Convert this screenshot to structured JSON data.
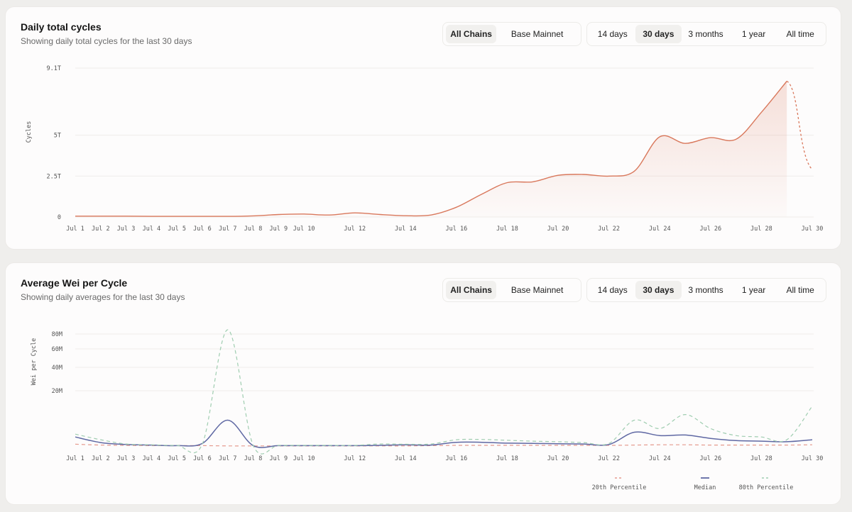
{
  "charts": [
    {
      "title": "Daily total cycles",
      "subtitle": "Showing daily total cycles for the last 30 days",
      "chain_options": [
        "All Chains",
        "Base Mainnet"
      ],
      "selected_chain": "All Chains",
      "range_options": [
        "14 days",
        "30 days",
        "3 months",
        "1 year",
        "All time"
      ],
      "selected_range": "30 days"
    },
    {
      "title": "Average Wei per Cycle",
      "subtitle": "Showing daily averages for the last 30 days",
      "chain_options": [
        "All Chains",
        "Base Mainnet"
      ],
      "selected_chain": "All Chains",
      "range_options": [
        "14 days",
        "30 days",
        "3 months",
        "1 year",
        "All time"
      ],
      "selected_range": "30 days"
    }
  ],
  "colors": {
    "cycles_line": "#d9785c",
    "percentile_20": "#e59a8e",
    "median": "#5f68a3",
    "percentile_80": "#9fcdb0"
  },
  "chart_data": [
    {
      "type": "area",
      "ylabel": "Cycles",
      "yticks": [
        0,
        2.5,
        5,
        9.1
      ],
      "ytick_labels": [
        "0",
        "2.5T",
        "5T",
        "9.1T"
      ],
      "ylim": [
        0,
        9.1
      ],
      "y_unit": "trillion cycles",
      "x_ticks": [
        "Jul 1",
        "Jul 2",
        "Jul 3",
        "Jul 4",
        "Jul 5",
        "Jul 6",
        "Jul 7",
        "Jul 8",
        "Jul 9",
        "Jul 10",
        "Jul 12",
        "Jul 14",
        "Jul 16",
        "Jul 18",
        "Jul 20",
        "Jul 22",
        "Jul 24",
        "Jul 26",
        "Jul 28",
        "Jul 30"
      ],
      "grid": true,
      "series": [
        {
          "x": [
            1,
            2,
            3,
            4,
            5,
            6,
            7,
            8,
            9,
            10,
            11,
            12,
            13,
            14,
            15,
            16,
            17,
            18,
            19,
            20,
            21,
            22,
            23,
            24,
            25,
            26,
            27,
            28,
            29
          ],
          "values": [
            0.05,
            0.05,
            0.05,
            0.04,
            0.04,
            0.04,
            0.04,
            0.07,
            0.15,
            0.18,
            0.12,
            0.25,
            0.15,
            0.08,
            0.12,
            0.6,
            1.4,
            2.1,
            2.15,
            2.55,
            2.6,
            2.5,
            2.8,
            4.9,
            4.5,
            4.85,
            4.75,
            6.4,
            8.3
          ],
          "style": "solid"
        },
        {
          "x": [
            29,
            30
          ],
          "values": [
            8.3,
            2.9
          ],
          "style": "dashed"
        }
      ]
    },
    {
      "type": "line",
      "ylabel": "Wei per Cycle",
      "yticks": [
        20,
        40,
        60,
        80
      ],
      "ytick_labels": [
        "20M",
        "40M",
        "60M",
        "80M"
      ],
      "y_unit": "million wei",
      "x_ticks": [
        "Jul 1",
        "Jul 2",
        "Jul 3",
        "Jul 4",
        "Jul 5",
        "Jul 6",
        "Jul 7",
        "Jul 8",
        "Jul 9",
        "Jul 10",
        "Jul 12",
        "Jul 14",
        "Jul 16",
        "Jul 18",
        "Jul 20",
        "Jul 22",
        "Jul 24",
        "Jul 26",
        "Jul 28",
        "Jul 30"
      ],
      "grid": true,
      "legend": [
        "20th Percentile",
        "Median",
        "80th Percentile"
      ],
      "legend_position": "bottom-right",
      "series": [
        {
          "name": "20th Percentile",
          "x": [
            1,
            2,
            3,
            4,
            5,
            6,
            7,
            8,
            9,
            10,
            11,
            12,
            13,
            14,
            15,
            16,
            17,
            18,
            19,
            20,
            21,
            22,
            23,
            24,
            25,
            26,
            27,
            28,
            29,
            30
          ],
          "values": [
            0.9,
            0.6,
            0.5,
            0.4,
            0.4,
            0.4,
            0.3,
            0.3,
            0.3,
            0.3,
            0.3,
            0.3,
            0.3,
            0.3,
            0.4,
            0.5,
            0.5,
            0.5,
            0.5,
            0.5,
            0.5,
            0.5,
            0.6,
            0.7,
            0.7,
            0.6,
            0.6,
            0.6,
            0.6,
            0.7
          ],
          "style": "dashed"
        },
        {
          "name": "Median",
          "x": [
            1,
            2,
            3,
            4,
            5,
            6,
            7,
            8,
            9,
            10,
            11,
            12,
            13,
            14,
            15,
            16,
            17,
            18,
            19,
            20,
            21,
            22,
            23,
            24,
            25,
            26,
            27,
            28,
            29,
            30
          ],
          "values": [
            3.5,
            1.5,
            0.8,
            0.6,
            0.4,
            1.2,
            9.5,
            0.4,
            0.4,
            0.4,
            0.4,
            0.4,
            0.5,
            0.7,
            0.6,
            1.6,
            1.6,
            1.3,
            1.2,
            1.1,
            1.0,
            0.8,
            5.2,
            4.0,
            4.2,
            3.0,
            2.2,
            2.0,
            1.8,
            2.5
          ],
          "style": "solid"
        },
        {
          "name": "80th Percentile",
          "x": [
            1,
            2,
            3,
            4,
            5,
            6,
            7,
            8,
            9,
            10,
            11,
            12,
            13,
            14,
            15,
            16,
            17,
            18,
            19,
            20,
            21,
            22,
            23,
            24,
            25,
            26,
            27,
            28,
            29,
            30
          ],
          "values": [
            4.5,
            2.5,
            1.0,
            0.7,
            0.5,
            1.0,
            85,
            0.5,
            0.5,
            0.5,
            0.5,
            0.5,
            1.0,
            0.9,
            1.0,
            2.5,
            2.6,
            2.3,
            2.0,
            1.8,
            1.5,
            1.2,
            9.5,
            6.5,
            11.5,
            6.5,
            4.0,
            3.5,
            2.5,
            14.5
          ],
          "style": "dashed"
        }
      ]
    }
  ]
}
